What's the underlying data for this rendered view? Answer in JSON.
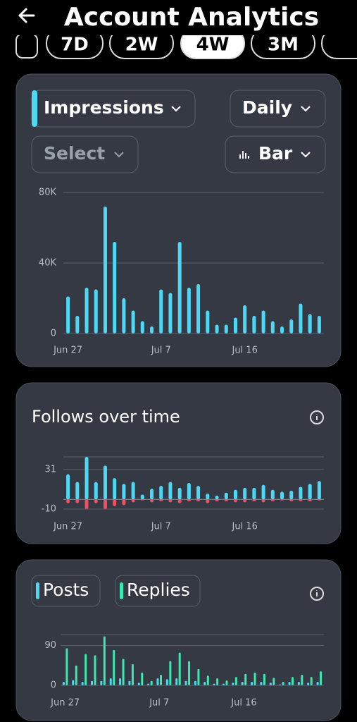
{
  "header": {
    "title": "Account Analytics"
  },
  "tabs": {
    "items": [
      "7D",
      "2W",
      "4W",
      "3M"
    ],
    "selected": 2
  },
  "controls": {
    "metric": "Impressions",
    "interval": "Daily",
    "compare": "Select",
    "style": "Bar"
  },
  "chart_data": [
    {
      "type": "bar",
      "barmode": "overlay",
      "categories": [
        "Jun 27",
        null,
        null,
        null,
        null,
        null,
        null,
        null,
        null,
        null,
        "Jul 7",
        null,
        null,
        null,
        null,
        null,
        null,
        null,
        null,
        "Jul 16",
        null,
        null,
        null,
        null,
        null,
        null,
        null,
        null
      ],
      "series": [
        {
          "color": "#4dd8f5",
          "values": [
            21000,
            10000,
            26000,
            25000,
            72000,
            52000,
            20000,
            13000,
            7000,
            4000,
            25000,
            23000,
            52000,
            26000,
            28000,
            13000,
            5000,
            5000,
            9000,
            16000,
            10000,
            13000,
            7000,
            4000,
            8000,
            17000,
            11000,
            10000
          ]
        }
      ],
      "ylim": [
        0,
        80000
      ],
      "yticks": [
        {
          "value": 0,
          "label": "0"
        },
        {
          "value": 40000,
          "label": "40K"
        },
        {
          "value": 80000,
          "label": "80K"
        }
      ],
      "grid": true
    },
    {
      "type": "bar",
      "barmode": "overlay",
      "title": "Follows over time",
      "categories": [
        "Jun 27",
        null,
        null,
        null,
        null,
        null,
        null,
        null,
        null,
        null,
        "Jul 7",
        null,
        null,
        null,
        null,
        null,
        null,
        null,
        null,
        "Jul 16",
        null,
        null,
        null,
        null,
        null,
        null,
        null,
        null
      ],
      "series": [
        {
          "color": "#4dd8f5",
          "values": [
            26,
            18,
            44,
            18,
            35,
            22,
            16,
            18,
            5,
            11,
            14,
            18,
            12,
            17,
            14,
            6,
            4,
            7,
            10,
            12,
            12,
            15,
            10,
            8,
            9,
            13,
            16,
            19
          ]
        },
        {
          "color": "#f0505f",
          "values": [
            -4,
            -4,
            -10,
            -4,
            -10,
            -7,
            -6,
            -3,
            -1,
            -3,
            -2,
            -3,
            -4,
            -2,
            -2,
            -4,
            -2,
            -2,
            -3,
            -3,
            -2,
            -3,
            -2,
            -1,
            -2,
            -2,
            -2,
            -1
          ]
        }
      ],
      "ylim": [
        -10,
        44
      ],
      "yticks": [
        -10,
        31
      ],
      "grid": true
    },
    {
      "type": "bar",
      "barmode": "group",
      "categories": [
        "Jun 27",
        null,
        null,
        null,
        null,
        null,
        null,
        null,
        null,
        null,
        "Jul 7",
        null,
        null,
        null,
        null,
        null,
        null,
        null,
        null,
        "Jul 16",
        null,
        null,
        null,
        null,
        null,
        null,
        null,
        null
      ],
      "series": [
        {
          "name": "Posts",
          "color": "#4dd8f5",
          "values": [
            8,
            12,
            8,
            10,
            10,
            16,
            16,
            10,
            6,
            4,
            16,
            14,
            16,
            10,
            10,
            8,
            4,
            4,
            6,
            8,
            8,
            8,
            6,
            2,
            8,
            8,
            6,
            8
          ]
        },
        {
          "name": "Replies",
          "color": "#3ee6b0",
          "values": [
            84,
            45,
            71,
            68,
            111,
            80,
            60,
            48,
            29,
            10,
            24,
            55,
            74,
            55,
            37,
            22,
            16,
            11,
            19,
            26,
            29,
            26,
            17,
            8,
            19,
            24,
            19,
            32
          ]
        }
      ],
      "ylim": [
        0,
        115
      ],
      "yticks": [
        0,
        90
      ],
      "grid": true
    }
  ]
}
